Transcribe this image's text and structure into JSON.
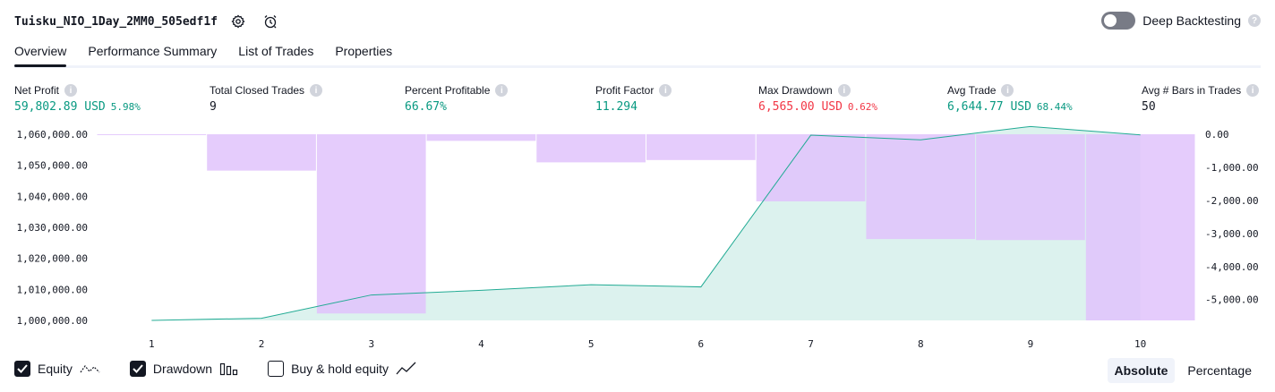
{
  "header": {
    "title": "Tuisku_NIO_1Day_2MM0_505edf1f",
    "settings_icon": "gear-icon",
    "alert_icon": "alarm-clock-icon",
    "deep_backtesting_label": "Deep Backtesting",
    "deep_backtesting_enabled": false
  },
  "tabs": [
    {
      "label": "Overview",
      "active": true
    },
    {
      "label": "Performance Summary",
      "active": false
    },
    {
      "label": "List of Trades",
      "active": false
    },
    {
      "label": "Properties",
      "active": false
    }
  ],
  "metrics": [
    {
      "label": "Net Profit",
      "value": "59,802.89 USD",
      "pct": "5.98%",
      "tone": "green"
    },
    {
      "label": "Total Closed Trades",
      "value": "9",
      "pct": "",
      "tone": "dark"
    },
    {
      "label": "Percent Profitable",
      "value": "66.67%",
      "pct": "",
      "tone": "green"
    },
    {
      "label": "Profit Factor",
      "value": "11.294",
      "pct": "",
      "tone": "green"
    },
    {
      "label": "Max Drawdown",
      "value": "6,565.00 USD",
      "pct": "0.62%",
      "tone": "red"
    },
    {
      "label": "Avg Trade",
      "value": "6,644.77 USD",
      "pct": "68.44%",
      "tone": "green"
    },
    {
      "label": "Avg # Bars in Trades",
      "value": "50",
      "pct": "",
      "tone": "dark"
    }
  ],
  "chart_data": {
    "type": "line",
    "x": [
      1,
      2,
      3,
      4,
      5,
      6,
      7,
      8,
      9,
      10
    ],
    "series": [
      {
        "name": "Equity",
        "axis": "left",
        "values": [
          1000000,
          1000700,
          1008200,
          1009700,
          1011500,
          1010800,
          1059700,
          1058200,
          1062500,
          1059800
        ]
      },
      {
        "name": "Drawdown",
        "axis": "right",
        "values": [
          0,
          -1100,
          -5420,
          -200,
          -850,
          -780,
          -2030,
          -3170,
          -3200,
          -5630
        ]
      }
    ],
    "left_axis": {
      "ticks": [
        "1,060,000.00",
        "1,050,000.00",
        "1,040,000.00",
        "1,030,000.00",
        "1,020,000.00",
        "1,010,000.00",
        "1,000,000.00"
      ],
      "ylim": [
        1000000,
        1060000
      ]
    },
    "right_axis": {
      "ticks": [
        "0.00",
        "-1,000.00",
        "-2,000.00",
        "-3,000.00",
        "-4,000.00",
        "-5,000.00"
      ],
      "ylim": [
        -5630,
        0
      ]
    },
    "x_ticks": [
      "1",
      "2",
      "3",
      "4",
      "5",
      "6",
      "7",
      "8",
      "9",
      "10"
    ],
    "colors": {
      "equity_line": "#22ab94",
      "equity_fill": "#dcf2ee",
      "drawdown_bar": "#e1c3fb",
      "overlap": "#b0b7e3"
    },
    "grid": false
  },
  "legend": [
    {
      "label": "Equity",
      "checked": true,
      "icon": "equity-line-icon"
    },
    {
      "label": "Drawdown",
      "checked": true,
      "icon": "drawdown-bars-icon"
    },
    {
      "label": "Buy & hold equity",
      "checked": false,
      "icon": "buy-hold-line-icon"
    }
  ],
  "mode": {
    "absolute_label": "Absolute",
    "percentage_label": "Percentage",
    "active": "Absolute"
  }
}
